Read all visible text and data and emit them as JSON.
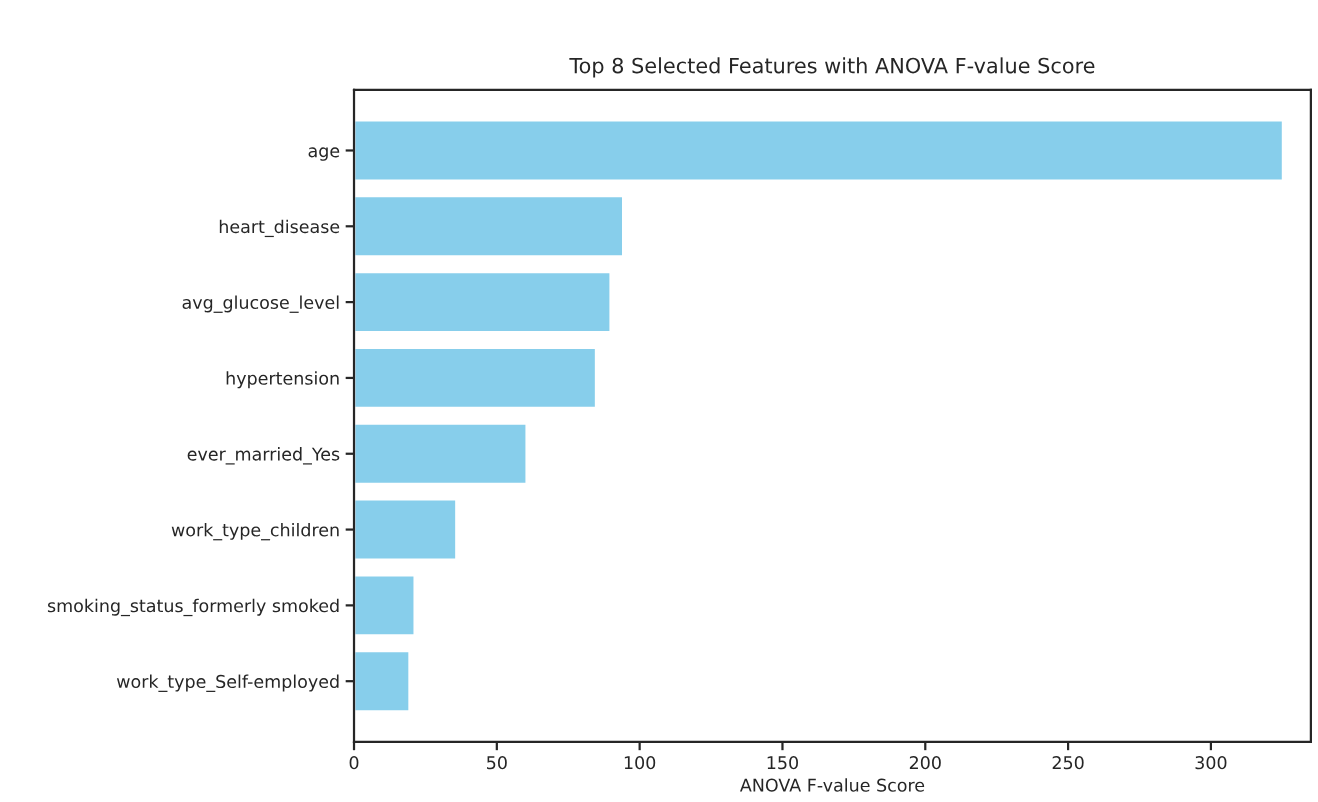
{
  "chart_data": {
    "type": "bar",
    "orientation": "horizontal",
    "title": "Top 8 Selected Features with ANOVA F-value Score",
    "xlabel": "ANOVA F-value Score",
    "categories": [
      "age",
      "heart_disease",
      "avg_glucose_level",
      "hypertension",
      "ever_married_Yes",
      "work_type_children",
      "smoking_status_formerly smoked",
      "work_type_Self-employed"
    ],
    "values": [
      325.3,
      94.3,
      89.9,
      84.8,
      60.5,
      35.9,
      21.3,
      19.5
    ],
    "color": "#87ceeb",
    "xlim": [
      0,
      335
    ],
    "xticks": [
      0,
      50,
      100,
      150,
      200,
      250,
      300
    ],
    "grid": false,
    "legend": false
  }
}
